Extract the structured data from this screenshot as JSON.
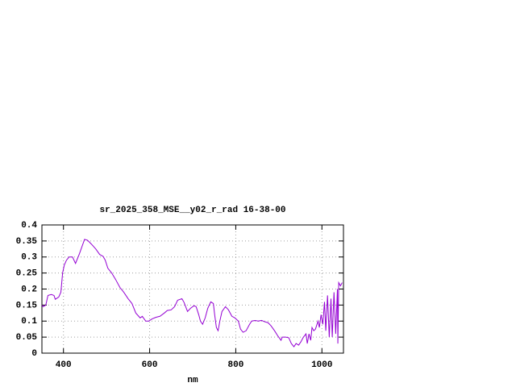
{
  "chart_data": {
    "type": "line",
    "title": "sr_2025_358_MSE__y02_r_rad 16-38-00",
    "x_label": "nm",
    "xlim": [
      350,
      1050
    ],
    "xticks": [
      400,
      600,
      800,
      1000
    ],
    "ylim": [
      0,
      0.4
    ],
    "yticks": [
      0,
      0.05,
      0.1,
      0.15,
      0.2,
      0.25,
      0.3,
      0.35,
      0.4
    ],
    "grid": true,
    "x": [
      350,
      353,
      359,
      364,
      372,
      378,
      381,
      389,
      394,
      398,
      402,
      407,
      413,
      421,
      428,
      437,
      449,
      456,
      465,
      475,
      484,
      492,
      497,
      503,
      512,
      521,
      531,
      540,
      550,
      559,
      568,
      578,
      583,
      591,
      598,
      606,
      615,
      624,
      634,
      641,
      650,
      658,
      665,
      675,
      680,
      688,
      695,
      703,
      708,
      714,
      718,
      723,
      729,
      735,
      742,
      748,
      751,
      755,
      759,
      763,
      768,
      776,
      783,
      791,
      798,
      806,
      811,
      817,
      824,
      832,
      837,
      845,
      852,
      860,
      867,
      875,
      882,
      890,
      897,
      905,
      908,
      916,
      923,
      929,
      935,
      940,
      946,
      951,
      957,
      963,
      966,
      970,
      974,
      977,
      981,
      985,
      991,
      994,
      998,
      1002,
      1006,
      1009,
      1013,
      1017,
      1021,
      1024,
      1028,
      1032,
      1036,
      1037,
      1039,
      1043,
      1047
    ],
    "series": [
      {
        "color": "#9400d3",
        "values": [
          0.15,
          0.145,
          0.15,
          0.18,
          0.183,
          0.18,
          0.168,
          0.175,
          0.19,
          0.25,
          0.275,
          0.29,
          0.3,
          0.3,
          0.28,
          0.31,
          0.355,
          0.352,
          0.34,
          0.325,
          0.308,
          0.302,
          0.29,
          0.265,
          0.25,
          0.23,
          0.205,
          0.19,
          0.17,
          0.155,
          0.125,
          0.11,
          0.115,
          0.1,
          0.1,
          0.107,
          0.112,
          0.115,
          0.125,
          0.133,
          0.135,
          0.145,
          0.165,
          0.17,
          0.158,
          0.13,
          0.14,
          0.148,
          0.145,
          0.12,
          0.1,
          0.09,
          0.11,
          0.14,
          0.16,
          0.155,
          0.12,
          0.08,
          0.07,
          0.1,
          0.13,
          0.145,
          0.135,
          0.115,
          0.11,
          0.1,
          0.075,
          0.065,
          0.07,
          0.09,
          0.1,
          0.102,
          0.1,
          0.102,
          0.098,
          0.095,
          0.085,
          0.07,
          0.055,
          0.04,
          0.05,
          0.05,
          0.048,
          0.03,
          0.02,
          0.03,
          0.025,
          0.035,
          0.05,
          0.06,
          0.03,
          0.06,
          0.04,
          0.08,
          0.07,
          0.075,
          0.1,
          0.08,
          0.12,
          0.09,
          0.16,
          0.07,
          0.18,
          0.05,
          0.17,
          0.05,
          0.19,
          0.06,
          0.2,
          0.03,
          0.22,
          0.21,
          0.22
        ]
      }
    ]
  }
}
